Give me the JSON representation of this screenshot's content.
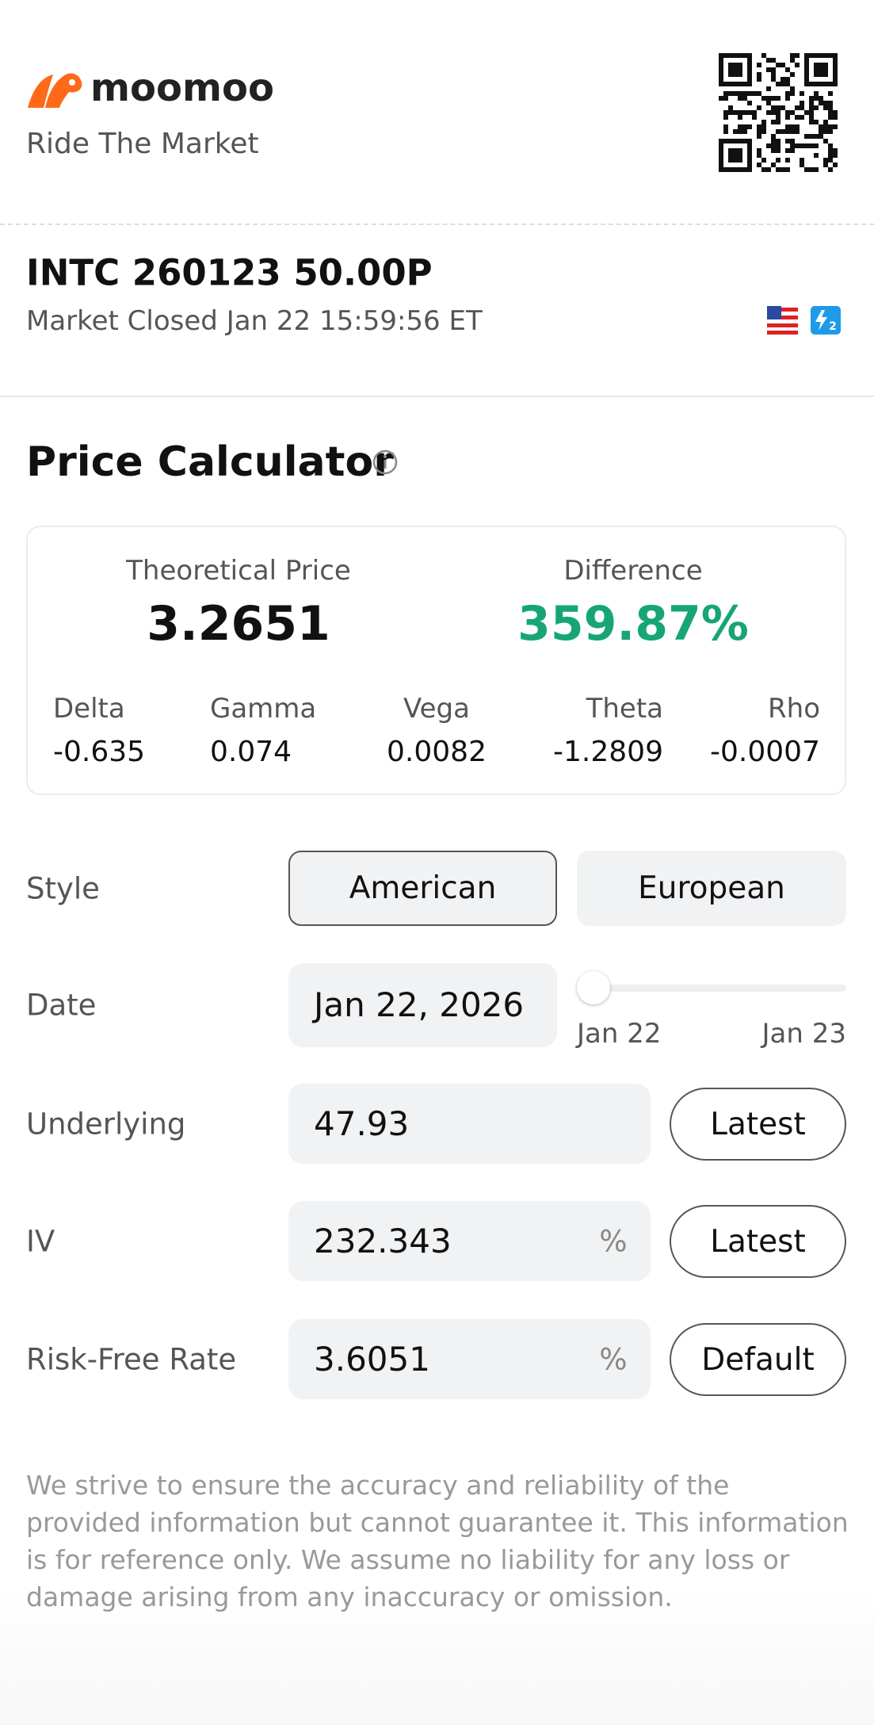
{
  "header": {
    "brand": "moomoo",
    "tagline": "Ride The Market"
  },
  "contract": {
    "symbol": "INTC 260123 50.00P",
    "status": "Market Closed Jan 22 15:59:56 ET"
  },
  "calculator": {
    "title": "Price Calculator",
    "summary": [
      {
        "label": "Theoretical Price",
        "value": "3.2651"
      },
      {
        "label": "Difference",
        "value": "359.87%"
      }
    ],
    "greeks": [
      {
        "label": "Delta",
        "value": "-0.635"
      },
      {
        "label": "Gamma",
        "value": "0.074"
      },
      {
        "label": "Vega",
        "value": "0.0082"
      },
      {
        "label": "Theta",
        "value": "-1.2809"
      },
      {
        "label": "Rho",
        "value": "-0.0007"
      }
    ],
    "style": {
      "label": "Style",
      "options": [
        "American",
        "European"
      ]
    },
    "date": {
      "label": "Date",
      "value": "Jan 22, 2026",
      "slider_start": "Jan 22",
      "slider_end": "Jan 23"
    },
    "inputs": [
      {
        "label": "Underlying",
        "value": "47.93",
        "button": "Latest"
      },
      {
        "label": "IV",
        "value": "232.343",
        "unit": "%",
        "button": "Latest"
      },
      {
        "label": "Risk-Free Rate",
        "value": "3.6051",
        "unit": "%",
        "button": "Default"
      }
    ]
  },
  "disclaimer": "We strive to ensure the accuracy and reliability of the provided information but cannot guarantee it. This information is for reference only. We assume no liability for any loss or damage arising from any inaccuracy or omission."
}
